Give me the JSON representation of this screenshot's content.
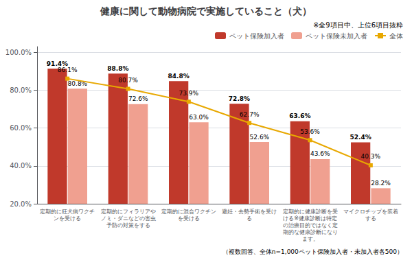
{
  "chart_data": {
    "type": "bar",
    "title": "健康に関して動物病院で実施していること（犬）",
    "subtitle": "※全9項目中、上位6項目抜粋",
    "annotations": [
      "（複数回答、全体n=1,000ペット保険加入者・未加入者各500）"
    ],
    "categories": [
      "定期的に狂犬病ワクチンを受ける",
      "定期的にフィラリアやノミ・ダニなどの害虫予防の対策をする",
      "定期的に混合ワクチンを受ける",
      "避妊・去勢手術を受ける",
      "定期的に健康診断を受ける※健康診断は特定の治療目的ではなく定期的な健康診断になります。",
      "マイクロチップを装着する"
    ],
    "series": [
      {
        "name": "ペット保険加入者",
        "type": "bar",
        "color": "#C0392B",
        "values": [
          91.4,
          88.8,
          84.8,
          72.8,
          63.6,
          52.4
        ],
        "value_labels": [
          "91.4%",
          "88.8%",
          "84.8%",
          "72.8%",
          "63.6%",
          "52.4%"
        ]
      },
      {
        "name": "ペット保険未加入者",
        "type": "bar",
        "color": "#F0A090",
        "values": [
          80.8,
          72.6,
          63.0,
          52.6,
          43.6,
          28.2
        ],
        "value_labels": [
          "80.8%",
          "72.6%",
          "63.0%",
          "52.6%",
          "43.6%",
          "28.2%"
        ]
      },
      {
        "name": "全体",
        "type": "line",
        "color": "#E8A800",
        "marker": "square",
        "values": [
          86.1,
          80.7,
          73.9,
          62.7,
          53.6,
          40.3
        ],
        "value_labels": [
          "86.1%",
          "80.7%",
          "73.9%",
          "62.7%",
          "53.6%",
          "40.3%"
        ]
      }
    ],
    "ylim": [
      20,
      103
    ],
    "yticks": [
      {
        "value": 20,
        "label": "20.0%"
      },
      {
        "value": 40,
        "label": "40.0%"
      },
      {
        "value": 60,
        "label": "60.0%"
      },
      {
        "value": 80,
        "label": "80.0%"
      },
      {
        "value": 100,
        "label": "100.0%"
      }
    ],
    "grid": true,
    "legend": "upper right",
    "data_labels": true
  }
}
